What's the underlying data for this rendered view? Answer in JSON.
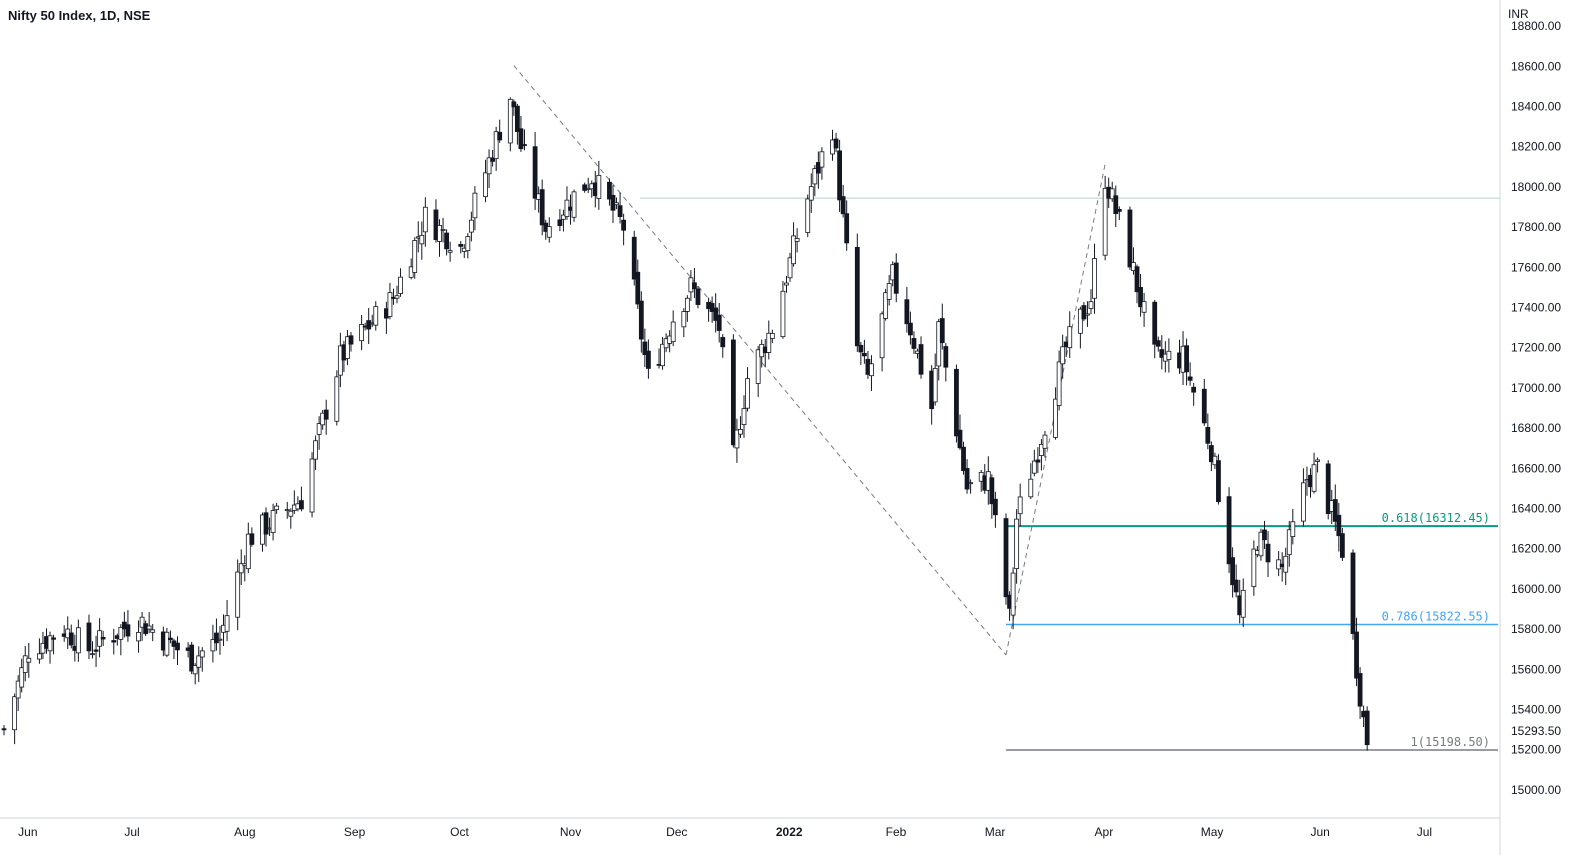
{
  "header": {
    "symbol_title": "Nifty 50 Index, 1D, NSE"
  },
  "chart_data": {
    "type": "candlestick",
    "title": "Nifty 50 Index, 1D, NSE",
    "currency": "INR",
    "ylim": [
      14860,
      18930
    ],
    "y_ticks": [
      "18800.00",
      "18600.00",
      "18400.00",
      "18200.00",
      "18000.00",
      "17800.00",
      "17600.00",
      "17400.00",
      "17200.00",
      "17000.00",
      "16800.00",
      "16600.00",
      "16400.00",
      "16200.00",
      "16000.00",
      "15800.00",
      "15600.00",
      "15400.00",
      "15293.50",
      "15200.00",
      "15000.00"
    ],
    "x_ticks": [
      {
        "label": "Jun",
        "date": "2021-06-01"
      },
      {
        "label": "Jul",
        "date": "2021-07-01"
      },
      {
        "label": "Aug",
        "date": "2021-08-01"
      },
      {
        "label": "Sep",
        "date": "2021-09-01"
      },
      {
        "label": "Oct",
        "date": "2021-10-01"
      },
      {
        "label": "Nov",
        "date": "2021-11-01"
      },
      {
        "label": "Dec",
        "date": "2021-12-01"
      },
      {
        "label": "2022",
        "date": "2022-01-01",
        "bold": true
      },
      {
        "label": "Feb",
        "date": "2022-02-01"
      },
      {
        "label": "Mar",
        "date": "2022-03-01"
      },
      {
        "label": "Apr",
        "date": "2022-04-01"
      },
      {
        "label": "May",
        "date": "2022-05-01"
      },
      {
        "label": "Jun",
        "date": "2022-06-01"
      },
      {
        "label": "Jul",
        "date": "2022-07-01"
      }
    ],
    "x_range": [
      "2021-05-28",
      "2022-07-20"
    ],
    "anchors": [
      {
        "date": "2021-05-28",
        "close": 15300
      },
      {
        "date": "2021-06-04",
        "close": 15700
      },
      {
        "date": "2021-06-14",
        "close": 15800
      },
      {
        "date": "2021-06-21",
        "close": 15700
      },
      {
        "date": "2021-07-05",
        "close": 15850
      },
      {
        "date": "2021-07-20",
        "close": 15650
      },
      {
        "date": "2021-07-28",
        "close": 15750
      },
      {
        "date": "2021-08-05",
        "close": 16250
      },
      {
        "date": "2021-08-20",
        "close": 16450
      },
      {
        "date": "2021-08-31",
        "close": 17150
      },
      {
        "date": "2021-09-15",
        "close": 17450
      },
      {
        "date": "2021-09-24",
        "close": 17850
      },
      {
        "date": "2021-10-04",
        "close": 17700
      },
      {
        "date": "2021-10-18",
        "close": 18450
      },
      {
        "date": "2021-10-21",
        "close": 18200
      },
      {
        "date": "2021-10-28",
        "close": 17800
      },
      {
        "date": "2021-11-10",
        "close": 18050
      },
      {
        "date": "2021-11-19",
        "close": 17800
      },
      {
        "date": "2021-11-26",
        "close": 17050
      },
      {
        "date": "2021-12-03",
        "close": 17350
      },
      {
        "date": "2021-12-08",
        "close": 17500
      },
      {
        "date": "2021-12-16",
        "close": 17300
      },
      {
        "date": "2021-12-20",
        "close": 16650
      },
      {
        "date": "2021-12-24",
        "close": 17050
      },
      {
        "date": "2021-12-31",
        "close": 17300
      },
      {
        "date": "2022-01-10",
        "close": 17950
      },
      {
        "date": "2022-01-17",
        "close": 18300
      },
      {
        "date": "2022-01-24",
        "close": 17200
      },
      {
        "date": "2022-01-27",
        "close": 17050
      },
      {
        "date": "2022-02-03",
        "close": 17550
      },
      {
        "date": "2022-02-08",
        "close": 17300
      },
      {
        "date": "2022-02-14",
        "close": 16900
      },
      {
        "date": "2022-02-16",
        "close": 17300
      },
      {
        "date": "2022-02-24",
        "close": 16500
      },
      {
        "date": "2022-03-02",
        "close": 16550
      },
      {
        "date": "2022-03-08",
        "close": 15850
      },
      {
        "date": "2022-03-10",
        "close": 16350
      },
      {
        "date": "2022-03-16",
        "close": 16700
      },
      {
        "date": "2022-03-24",
        "close": 17200
      },
      {
        "date": "2022-03-31",
        "close": 17450
      },
      {
        "date": "2022-04-04",
        "close": 18050
      },
      {
        "date": "2022-04-11",
        "close": 17650
      },
      {
        "date": "2022-04-18",
        "close": 17150
      },
      {
        "date": "2022-04-26",
        "close": 17150
      },
      {
        "date": "2022-05-04",
        "close": 16700
      },
      {
        "date": "2022-05-12",
        "close": 15850
      },
      {
        "date": "2022-05-17",
        "close": 16250
      },
      {
        "date": "2022-05-24",
        "close": 16100
      },
      {
        "date": "2022-05-31",
        "close": 16550
      },
      {
        "date": "2022-06-03",
        "close": 16600
      },
      {
        "date": "2022-06-10",
        "close": 16200
      },
      {
        "date": "2022-06-13",
        "close": 15750
      },
      {
        "date": "2022-06-16",
        "close": 15350
      },
      {
        "date": "2022-06-17",
        "close": 15250
      }
    ],
    "annotations": {
      "resistance_level": 17944,
      "trend_line": {
        "from": {
          "date": "2021-10-19",
          "value": 18604
        },
        "to": {
          "date": "2022-03-07",
          "value": 15671
        }
      },
      "fib_line": {
        "from": {
          "date": "2022-03-07",
          "value": 15671
        },
        "to": {
          "date": "2022-04-04",
          "value": 18114
        }
      },
      "fib_levels": [
        {
          "label": "0.618(16312.45)",
          "value": 16312.45,
          "color": "#089981"
        },
        {
          "label": "0.786(15822.55)",
          "value": 15822.55,
          "color": "#42a5f5"
        },
        {
          "label": "1(15198.50)",
          "value": 15198.5,
          "color": "#787b86"
        }
      ],
      "fib_start_date": "2022-03-07"
    }
  }
}
